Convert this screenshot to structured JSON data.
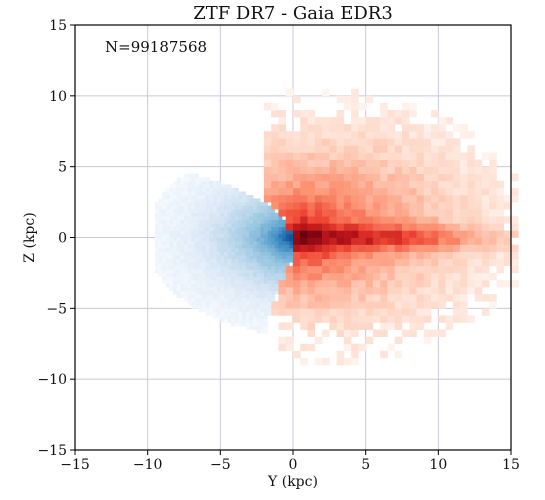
{
  "chart_data": {
    "type": "heatmap",
    "title": "ZTF DR7 - Gaia EDR3",
    "xlabel": "Y (kpc)",
    "ylabel": "Z (kpc)",
    "xlim": [
      -15,
      15
    ],
    "ylim": [
      -15,
      15
    ],
    "xticks": [
      -15,
      -10,
      -5,
      0,
      5,
      10,
      15
    ],
    "yticks": [
      -15,
      -10,
      -5,
      0,
      5,
      10,
      15
    ],
    "grid": true,
    "annotation": "N=99187568",
    "colors": {
      "frame": "#000000",
      "grid": "#c8c8dc",
      "blue_deep": "#08306b",
      "red_deep": "#67000d"
    },
    "series": [
      {
        "kind": "density",
        "colormap": "blues",
        "x_range": [
          -9,
          4
        ],
        "y_range": [
          -7,
          6
        ]
      },
      {
        "kind": "density",
        "colormap": "reds",
        "x_range": [
          -2,
          15
        ],
        "y_range": [
          -9,
          11
        ]
      }
    ]
  }
}
